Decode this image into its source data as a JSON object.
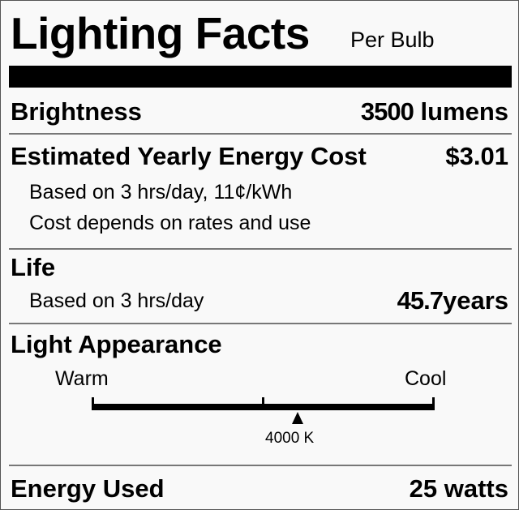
{
  "header": {
    "title": "Lighting Facts",
    "subtitle": "Per Bulb"
  },
  "brightness": {
    "label": "Brightness",
    "value": "3500",
    "unit": "lumens"
  },
  "energy_cost": {
    "label": "Estimated Yearly Energy Cost",
    "value": "$3.01",
    "note1": "Based on 3 hrs/day, 11¢/kWh",
    "note2": "Cost depends on rates and use"
  },
  "life": {
    "label": "Life",
    "note": "Based on 3 hrs/day",
    "value": "45.7",
    "unit": "years"
  },
  "light_appearance": {
    "label": "Light Appearance",
    "warm_label": "Warm",
    "cool_label": "Cool",
    "marker_label": "4000 K",
    "marker_position": 0.6
  },
  "energy_used": {
    "label": "Energy Used",
    "value": "25 watts"
  }
}
